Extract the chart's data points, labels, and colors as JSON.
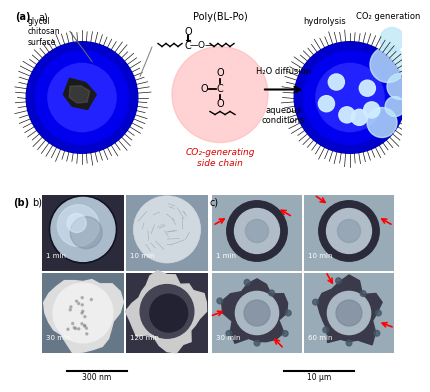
{
  "text_glycol": "glycol\nchitosan\nsurface",
  "text_poly": "Poly(BL-Po)",
  "text_co2gen": "CO₂ generation",
  "text_hydrolysis": "hydrolysis",
  "text_h2o": "H₂O diffusion",
  "text_aqueous": "aqueous\nconditions",
  "text_co2chain": "CO₂-generating\nside chain",
  "text_300nm": "300 nm",
  "text_10um": "10 μm",
  "times_b": [
    "1 min",
    "10 min",
    "30 min",
    "120 min"
  ],
  "times_c": [
    "1 min",
    "10 min",
    "30 min",
    "60 min"
  ],
  "bg_color": "#ffffff"
}
